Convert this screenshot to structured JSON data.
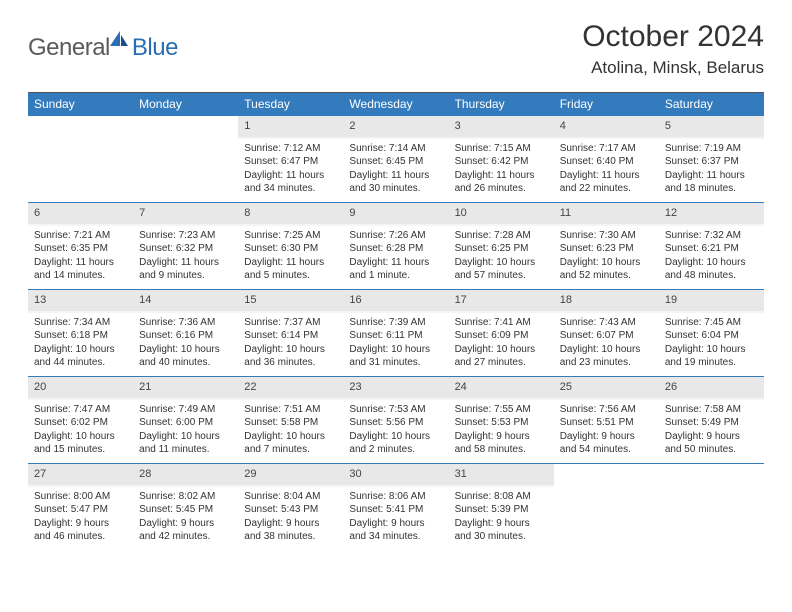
{
  "logo": {
    "part1": "General",
    "part2": "Blue"
  },
  "title": "October 2024",
  "location": "Atolina, Minsk, Belarus",
  "colors": {
    "header_bg": "#347bbd",
    "header_text": "#ffffff",
    "date_bg": "#e8e8e8",
    "row_border": "#347bbd",
    "body_text": "#333333",
    "logo_gray": "#5a5a5a",
    "logo_blue": "#2a6db5",
    "page_bg": "#ffffff"
  },
  "weekdays": [
    "Sunday",
    "Monday",
    "Tuesday",
    "Wednesday",
    "Thursday",
    "Friday",
    "Saturday"
  ],
  "weeks": [
    [
      {
        "empty": true
      },
      {
        "empty": true
      },
      {
        "date": "1",
        "sunrise": "Sunrise: 7:12 AM",
        "sunset": "Sunset: 6:47 PM",
        "daylight1": "Daylight: 11 hours",
        "daylight2": "and 34 minutes."
      },
      {
        "date": "2",
        "sunrise": "Sunrise: 7:14 AM",
        "sunset": "Sunset: 6:45 PM",
        "daylight1": "Daylight: 11 hours",
        "daylight2": "and 30 minutes."
      },
      {
        "date": "3",
        "sunrise": "Sunrise: 7:15 AM",
        "sunset": "Sunset: 6:42 PM",
        "daylight1": "Daylight: 11 hours",
        "daylight2": "and 26 minutes."
      },
      {
        "date": "4",
        "sunrise": "Sunrise: 7:17 AM",
        "sunset": "Sunset: 6:40 PM",
        "daylight1": "Daylight: 11 hours",
        "daylight2": "and 22 minutes."
      },
      {
        "date": "5",
        "sunrise": "Sunrise: 7:19 AM",
        "sunset": "Sunset: 6:37 PM",
        "daylight1": "Daylight: 11 hours",
        "daylight2": "and 18 minutes."
      }
    ],
    [
      {
        "date": "6",
        "sunrise": "Sunrise: 7:21 AM",
        "sunset": "Sunset: 6:35 PM",
        "daylight1": "Daylight: 11 hours",
        "daylight2": "and 14 minutes."
      },
      {
        "date": "7",
        "sunrise": "Sunrise: 7:23 AM",
        "sunset": "Sunset: 6:32 PM",
        "daylight1": "Daylight: 11 hours",
        "daylight2": "and 9 minutes."
      },
      {
        "date": "8",
        "sunrise": "Sunrise: 7:25 AM",
        "sunset": "Sunset: 6:30 PM",
        "daylight1": "Daylight: 11 hours",
        "daylight2": "and 5 minutes."
      },
      {
        "date": "9",
        "sunrise": "Sunrise: 7:26 AM",
        "sunset": "Sunset: 6:28 PM",
        "daylight1": "Daylight: 11 hours",
        "daylight2": "and 1 minute."
      },
      {
        "date": "10",
        "sunrise": "Sunrise: 7:28 AM",
        "sunset": "Sunset: 6:25 PM",
        "daylight1": "Daylight: 10 hours",
        "daylight2": "and 57 minutes."
      },
      {
        "date": "11",
        "sunrise": "Sunrise: 7:30 AM",
        "sunset": "Sunset: 6:23 PM",
        "daylight1": "Daylight: 10 hours",
        "daylight2": "and 52 minutes."
      },
      {
        "date": "12",
        "sunrise": "Sunrise: 7:32 AM",
        "sunset": "Sunset: 6:21 PM",
        "daylight1": "Daylight: 10 hours",
        "daylight2": "and 48 minutes."
      }
    ],
    [
      {
        "date": "13",
        "sunrise": "Sunrise: 7:34 AM",
        "sunset": "Sunset: 6:18 PM",
        "daylight1": "Daylight: 10 hours",
        "daylight2": "and 44 minutes."
      },
      {
        "date": "14",
        "sunrise": "Sunrise: 7:36 AM",
        "sunset": "Sunset: 6:16 PM",
        "daylight1": "Daylight: 10 hours",
        "daylight2": "and 40 minutes."
      },
      {
        "date": "15",
        "sunrise": "Sunrise: 7:37 AM",
        "sunset": "Sunset: 6:14 PM",
        "daylight1": "Daylight: 10 hours",
        "daylight2": "and 36 minutes."
      },
      {
        "date": "16",
        "sunrise": "Sunrise: 7:39 AM",
        "sunset": "Sunset: 6:11 PM",
        "daylight1": "Daylight: 10 hours",
        "daylight2": "and 31 minutes."
      },
      {
        "date": "17",
        "sunrise": "Sunrise: 7:41 AM",
        "sunset": "Sunset: 6:09 PM",
        "daylight1": "Daylight: 10 hours",
        "daylight2": "and 27 minutes."
      },
      {
        "date": "18",
        "sunrise": "Sunrise: 7:43 AM",
        "sunset": "Sunset: 6:07 PM",
        "daylight1": "Daylight: 10 hours",
        "daylight2": "and 23 minutes."
      },
      {
        "date": "19",
        "sunrise": "Sunrise: 7:45 AM",
        "sunset": "Sunset: 6:04 PM",
        "daylight1": "Daylight: 10 hours",
        "daylight2": "and 19 minutes."
      }
    ],
    [
      {
        "date": "20",
        "sunrise": "Sunrise: 7:47 AM",
        "sunset": "Sunset: 6:02 PM",
        "daylight1": "Daylight: 10 hours",
        "daylight2": "and 15 minutes."
      },
      {
        "date": "21",
        "sunrise": "Sunrise: 7:49 AM",
        "sunset": "Sunset: 6:00 PM",
        "daylight1": "Daylight: 10 hours",
        "daylight2": "and 11 minutes."
      },
      {
        "date": "22",
        "sunrise": "Sunrise: 7:51 AM",
        "sunset": "Sunset: 5:58 PM",
        "daylight1": "Daylight: 10 hours",
        "daylight2": "and 7 minutes."
      },
      {
        "date": "23",
        "sunrise": "Sunrise: 7:53 AM",
        "sunset": "Sunset: 5:56 PM",
        "daylight1": "Daylight: 10 hours",
        "daylight2": "and 2 minutes."
      },
      {
        "date": "24",
        "sunrise": "Sunrise: 7:55 AM",
        "sunset": "Sunset: 5:53 PM",
        "daylight1": "Daylight: 9 hours",
        "daylight2": "and 58 minutes."
      },
      {
        "date": "25",
        "sunrise": "Sunrise: 7:56 AM",
        "sunset": "Sunset: 5:51 PM",
        "daylight1": "Daylight: 9 hours",
        "daylight2": "and 54 minutes."
      },
      {
        "date": "26",
        "sunrise": "Sunrise: 7:58 AM",
        "sunset": "Sunset: 5:49 PM",
        "daylight1": "Daylight: 9 hours",
        "daylight2": "and 50 minutes."
      }
    ],
    [
      {
        "date": "27",
        "sunrise": "Sunrise: 8:00 AM",
        "sunset": "Sunset: 5:47 PM",
        "daylight1": "Daylight: 9 hours",
        "daylight2": "and 46 minutes."
      },
      {
        "date": "28",
        "sunrise": "Sunrise: 8:02 AM",
        "sunset": "Sunset: 5:45 PM",
        "daylight1": "Daylight: 9 hours",
        "daylight2": "and 42 minutes."
      },
      {
        "date": "29",
        "sunrise": "Sunrise: 8:04 AM",
        "sunset": "Sunset: 5:43 PM",
        "daylight1": "Daylight: 9 hours",
        "daylight2": "and 38 minutes."
      },
      {
        "date": "30",
        "sunrise": "Sunrise: 8:06 AM",
        "sunset": "Sunset: 5:41 PM",
        "daylight1": "Daylight: 9 hours",
        "daylight2": "and 34 minutes."
      },
      {
        "date": "31",
        "sunrise": "Sunrise: 8:08 AM",
        "sunset": "Sunset: 5:39 PM",
        "daylight1": "Daylight: 9 hours",
        "daylight2": "and 30 minutes."
      },
      {
        "empty": true
      },
      {
        "empty": true
      }
    ]
  ]
}
